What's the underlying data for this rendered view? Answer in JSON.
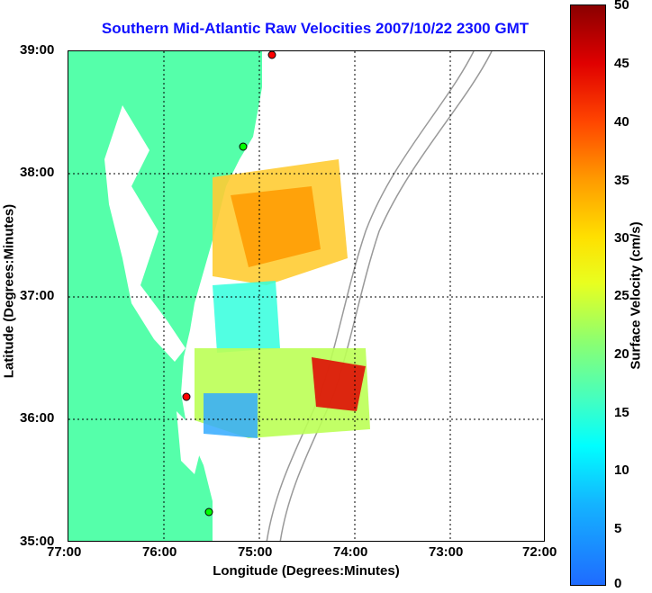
{
  "title": "Southern Mid-Atlantic Raw Velocities 2007/10/22 2300 GMT",
  "xlabel": "Longitude (Degrees:Minutes)",
  "ylabel": "Latitude (Degrees:Minutes)",
  "colorbar": {
    "title": "Surface Velocity (cm/s)",
    "ticks": [
      "0",
      "5",
      "10",
      "15",
      "20",
      "25",
      "30",
      "35",
      "40",
      "45",
      "50"
    ]
  },
  "x_ticks": [
    "77:00",
    "76:00",
    "75:00",
    "74:00",
    "73:00",
    "72:00"
  ],
  "y_ticks": [
    "39:00",
    "38:00",
    "37:00",
    "36:00",
    "35:00"
  ],
  "colors": {
    "land": "#55ffaa",
    "title": "#1010ff",
    "sites_red": "#ff0000",
    "sites_green": "#00ff00"
  }
}
